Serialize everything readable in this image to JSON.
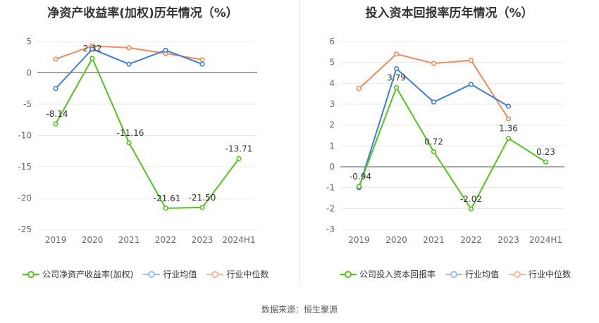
{
  "colors": {
    "company": "#52c41a",
    "avg": "#3b7ddd",
    "median": "#f08a5d"
  },
  "left": {
    "title": "净资产收益率(加权)历年情况（%）",
    "legend": [
      "公司净资产收益率(加权)",
      "行业均值",
      "行业中位数"
    ]
  },
  "right": {
    "title": "投入资本回报率历年情况（%）",
    "legend": [
      "公司投入资本回报率",
      "行业均值",
      "行业中位数"
    ]
  },
  "source": "数据来源：恒生聚源",
  "chart_data": [
    {
      "type": "line",
      "title": "净资产收益率(加权)历年情况（%）",
      "categories": [
        "2019",
        "2020",
        "2021",
        "2022",
        "2023",
        "2024H1"
      ],
      "ylim": [
        -25,
        5
      ],
      "yticks": [
        5,
        0,
        -5,
        -10,
        -15,
        -20,
        -25
      ],
      "series": [
        {
          "name": "公司净资产收益率(加权)",
          "values": [
            -8.14,
            2.32,
            -11.16,
            -21.61,
            -21.5,
            -13.71
          ],
          "labels": [
            "-8.14",
            "2.32",
            "-11.16",
            "-21.61",
            "-21.50",
            "-13.71"
          ]
        },
        {
          "name": "行业均值",
          "values": [
            -2.5,
            3.8,
            1.4,
            3.6,
            1.4,
            null
          ]
        },
        {
          "name": "行业中位数",
          "values": [
            2.2,
            4.3,
            4.0,
            3.1,
            2.1,
            null
          ]
        }
      ]
    },
    {
      "type": "line",
      "title": "投入资本回报率历年情况（%）",
      "categories": [
        "2019",
        "2020",
        "2021",
        "2022",
        "2023",
        "2024H1"
      ],
      "ylim": [
        -3,
        6
      ],
      "yticks": [
        6,
        5,
        4,
        3,
        2,
        1,
        0,
        -1,
        -2,
        -3
      ],
      "series": [
        {
          "name": "公司投入资本回报率",
          "values": [
            -0.94,
            3.79,
            0.72,
            -2.02,
            1.36,
            0.23
          ],
          "labels": [
            "-0.94",
            "3.79",
            "0.72",
            "-2.02",
            "1.36",
            "0.23"
          ]
        },
        {
          "name": "行业均值",
          "values": [
            -1.0,
            4.7,
            3.1,
            3.95,
            2.9,
            null
          ]
        },
        {
          "name": "行业中位数",
          "values": [
            3.75,
            5.4,
            4.95,
            5.1,
            2.3,
            null
          ]
        }
      ]
    }
  ]
}
